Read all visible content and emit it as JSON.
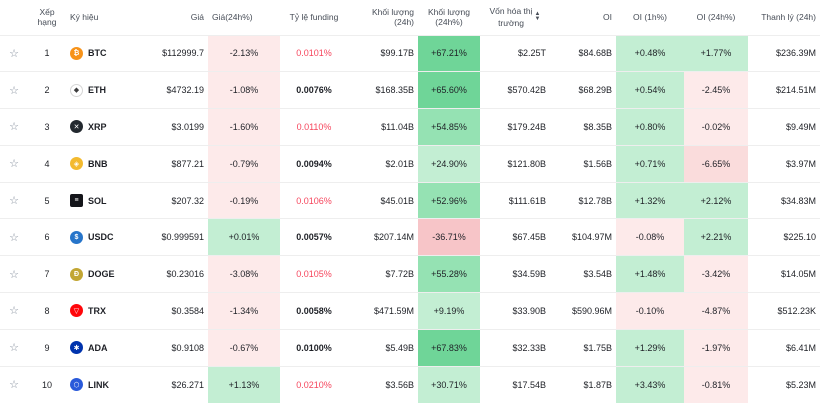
{
  "columns": {
    "rank": "Xếp hạng",
    "symbol": "Ký hiệu",
    "price": "Giá",
    "price_change": "Giá(24h%)",
    "funding": "Tỷ lệ funding",
    "volume": "Khối lượng (24h)",
    "volume_change": "Khối lượng (24h%)",
    "market_cap_1": "Vốn hóa thị",
    "market_cap_2": "trường",
    "oi": "OI",
    "oi_1h": "OI (1h%)",
    "oi_24h": "OI (24h%)",
    "liquidation": "Thanh lý (24h)"
  },
  "colors": {
    "pos_bg": [
      "#e8f6ee",
      "#c3eed3",
      "#95e2b3",
      "#6fd598"
    ],
    "neg_bg": [
      "#fdeaea",
      "#fadcdc",
      "#f7c5c8"
    ],
    "funding_red": "#f6465d"
  },
  "rows": [
    {
      "star_icon": "star-outline-icon",
      "rank": "1",
      "symbol": "BTC",
      "icon": "btc-icon",
      "icon_color": "#f7931a",
      "icon_glyph": "₿",
      "icon_shape": "circle",
      "price": "$112999.7",
      "price_change": "-2.13%",
      "price_level": -1,
      "funding": "0.0101%",
      "funding_red": true,
      "volume": "$99.17B",
      "volume_change": "+67.21%",
      "volume_level": 3,
      "market_cap": "$2.25T",
      "oi": "$84.68B",
      "oi_1h": "+0.48%",
      "oi_1h_level": 1,
      "oi_24h": "+1.77%",
      "oi_24h_level": 1,
      "liquidation": "$236.39M"
    },
    {
      "star_icon": "star-outline-icon",
      "rank": "2",
      "symbol": "ETH",
      "icon": "eth-icon",
      "icon_color": "#ffffff",
      "icon_glyph": "◆",
      "icon_shape": "circle",
      "price": "$4732.19",
      "price_change": "-1.08%",
      "price_level": -1,
      "funding": "0.0076%",
      "funding_red": false,
      "volume": "$168.35B",
      "volume_change": "+65.60%",
      "volume_level": 3,
      "market_cap": "$570.42B",
      "oi": "$68.29B",
      "oi_1h": "+0.54%",
      "oi_1h_level": 1,
      "oi_24h": "-2.45%",
      "oi_24h_level": -1,
      "liquidation": "$214.51M"
    },
    {
      "star_icon": "star-outline-icon",
      "rank": "3",
      "symbol": "XRP",
      "icon": "xrp-icon",
      "icon_color": "#23292f",
      "icon_glyph": "✕",
      "icon_shape": "circle",
      "price": "$3.0199",
      "price_change": "-1.60%",
      "price_level": -1,
      "funding": "0.0110%",
      "funding_red": true,
      "volume": "$11.04B",
      "volume_change": "+54.85%",
      "volume_level": 2,
      "market_cap": "$179.24B",
      "oi": "$8.35B",
      "oi_1h": "+0.80%",
      "oi_1h_level": 1,
      "oi_24h": "-0.02%",
      "oi_24h_level": -1,
      "liquidation": "$9.49M"
    },
    {
      "star_icon": "star-outline-icon",
      "rank": "4",
      "symbol": "BNB",
      "icon": "bnb-icon",
      "icon_color": "#f3ba2f",
      "icon_glyph": "◈",
      "icon_shape": "circle",
      "price": "$877.21",
      "price_change": "-0.79%",
      "price_level": -1,
      "funding": "0.0094%",
      "funding_red": false,
      "volume": "$2.01B",
      "volume_change": "+24.90%",
      "volume_level": 1,
      "market_cap": "$121.80B",
      "oi": "$1.56B",
      "oi_1h": "+0.71%",
      "oi_1h_level": 1,
      "oi_24h": "-6.65%",
      "oi_24h_level": -2,
      "liquidation": "$3.97M"
    },
    {
      "star_icon": "star-outline-icon",
      "rank": "5",
      "symbol": "SOL",
      "icon": "sol-icon",
      "icon_color": "#14151a",
      "icon_glyph": "≡",
      "icon_shape": "square",
      "price": "$207.32",
      "price_change": "-0.19%",
      "price_level": -1,
      "funding": "0.0106%",
      "funding_red": true,
      "volume": "$45.01B",
      "volume_change": "+52.96%",
      "volume_level": 2,
      "market_cap": "$111.61B",
      "oi": "$12.78B",
      "oi_1h": "+1.32%",
      "oi_1h_level": 1,
      "oi_24h": "+2.12%",
      "oi_24h_level": 1,
      "liquidation": "$34.83M"
    },
    {
      "star_icon": "star-outline-icon",
      "rank": "6",
      "symbol": "USDC",
      "icon": "usdc-icon",
      "icon_color": "#2775ca",
      "icon_glyph": "$",
      "icon_shape": "circle",
      "price": "$0.999591",
      "price_change": "+0.01%",
      "price_level": 1,
      "funding": "0.0057%",
      "funding_red": false,
      "volume": "$207.14M",
      "volume_change": "-36.71%",
      "volume_level": -3,
      "market_cap": "$67.45B",
      "oi": "$104.97M",
      "oi_1h": "-0.08%",
      "oi_1h_level": -1,
      "oi_24h": "+2.21%",
      "oi_24h_level": 1,
      "liquidation": "$225.10"
    },
    {
      "star_icon": "star-outline-icon",
      "rank": "7",
      "symbol": "DOGE",
      "icon": "doge-icon",
      "icon_color": "#c2a633",
      "icon_glyph": "Ð",
      "icon_shape": "circle",
      "price": "$0.23016",
      "price_change": "-3.08%",
      "price_level": -1,
      "funding": "0.0105%",
      "funding_red": true,
      "volume": "$7.72B",
      "volume_change": "+55.28%",
      "volume_level": 2,
      "market_cap": "$34.59B",
      "oi": "$3.54B",
      "oi_1h": "+1.48%",
      "oi_1h_level": 1,
      "oi_24h": "-3.42%",
      "oi_24h_level": -1,
      "liquidation": "$14.05M"
    },
    {
      "star_icon": "star-outline-icon",
      "rank": "8",
      "symbol": "TRX",
      "icon": "trx-icon",
      "icon_color": "#ff060a",
      "icon_glyph": "▽",
      "icon_shape": "circle",
      "price": "$0.3584",
      "price_change": "-1.34%",
      "price_level": -1,
      "funding": "0.0058%",
      "funding_red": false,
      "volume": "$471.59M",
      "volume_change": "+9.19%",
      "volume_level": 1,
      "market_cap": "$33.90B",
      "oi": "$590.96M",
      "oi_1h": "-0.10%",
      "oi_1h_level": -1,
      "oi_24h": "-4.87%",
      "oi_24h_level": -1,
      "liquidation": "$512.23K"
    },
    {
      "star_icon": "star-outline-icon",
      "rank": "9",
      "symbol": "ADA",
      "icon": "ada-icon",
      "icon_color": "#0033ad",
      "icon_glyph": "✱",
      "icon_shape": "circle",
      "price": "$0.9108",
      "price_change": "-0.67%",
      "price_level": -1,
      "funding": "0.0100%",
      "funding_red": false,
      "volume": "$5.49B",
      "volume_change": "+67.83%",
      "volume_level": 3,
      "market_cap": "$32.33B",
      "oi": "$1.75B",
      "oi_1h": "+1.29%",
      "oi_1h_level": 1,
      "oi_24h": "-1.97%",
      "oi_24h_level": -1,
      "liquidation": "$6.41M"
    },
    {
      "star_icon": "star-outline-icon",
      "rank": "10",
      "symbol": "LINK",
      "icon": "link-icon",
      "icon_color": "#2a5ada",
      "icon_glyph": "⬡",
      "icon_shape": "circle",
      "price": "$26.271",
      "price_change": "+1.13%",
      "price_level": 1,
      "funding": "0.0210%",
      "funding_red": true,
      "volume": "$3.56B",
      "volume_change": "+30.71%",
      "volume_level": 1,
      "market_cap": "$17.54B",
      "oi": "$1.87B",
      "oi_1h": "+3.43%",
      "oi_1h_level": 1,
      "oi_24h": "-0.81%",
      "oi_24h_level": -1,
      "liquidation": "$5.23M"
    }
  ]
}
